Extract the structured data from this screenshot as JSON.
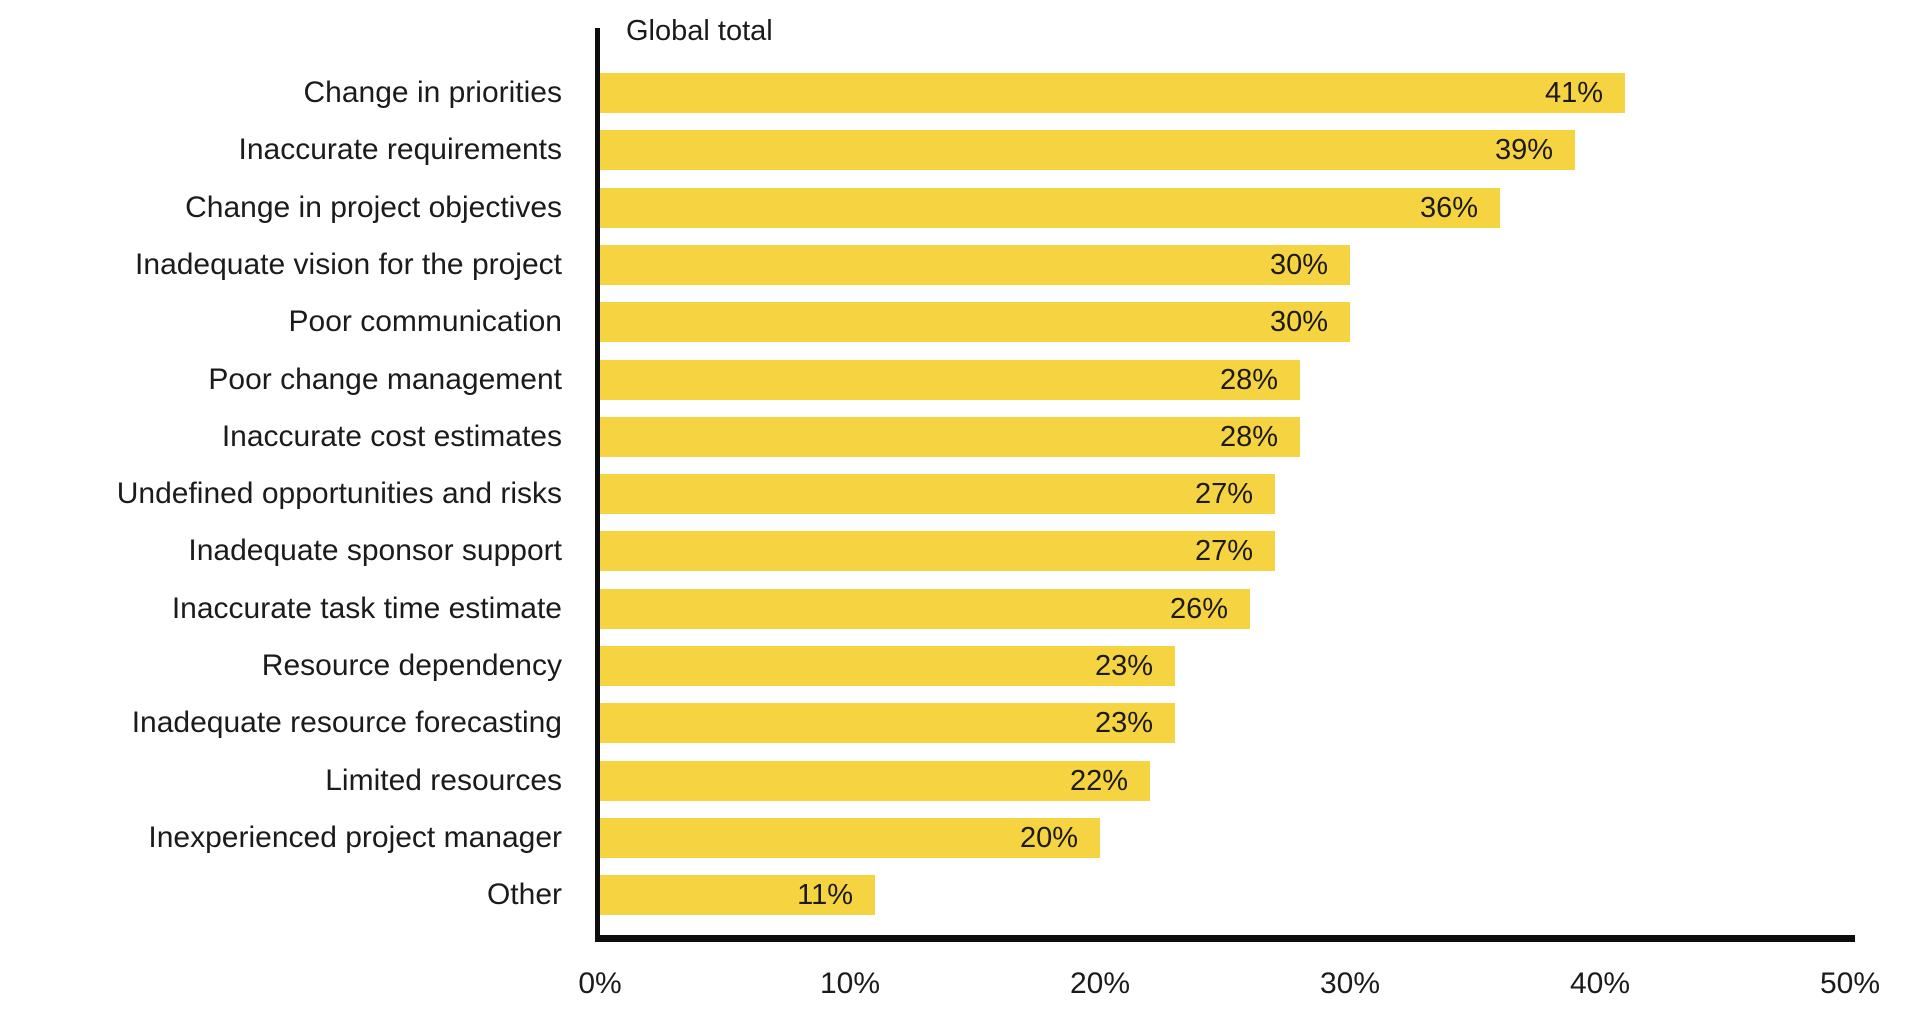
{
  "chart_data": {
    "type": "bar",
    "orientation": "horizontal",
    "title": "Global total",
    "categories": [
      "Change in priorities",
      "Inaccurate requirements",
      "Change in project objectives",
      "Inadequate vision for the project",
      "Poor communication",
      "Poor change management",
      "Inaccurate cost estimates",
      "Undefined opportunities and risks",
      "Inadequate sponsor support",
      "Inaccurate task time estimate",
      "Resource dependency",
      "Inadequate resource forecasting",
      "Limited resources",
      "Inexperienced project manager",
      "Other"
    ],
    "values": [
      41,
      39,
      36,
      30,
      30,
      28,
      28,
      27,
      27,
      26,
      23,
      23,
      22,
      20,
      11
    ],
    "value_labels": [
      "41%",
      "39%",
      "36%",
      "30%",
      "30%",
      "28%",
      "28%",
      "27%",
      "27%",
      "26%",
      "23%",
      "23%",
      "22%",
      "20%",
      "11%"
    ],
    "x_ticks": [
      "0%",
      "10%",
      "20%",
      "30%",
      "40%",
      "50%"
    ],
    "xlim": [
      0,
      50
    ],
    "xlabel": "",
    "ylabel": "",
    "grid": false,
    "legend": "none",
    "bar_color": "#F6D340",
    "text_color": "#1B1B1B",
    "axis_color": "#0D0D0D",
    "background": "#FFFFFF"
  }
}
